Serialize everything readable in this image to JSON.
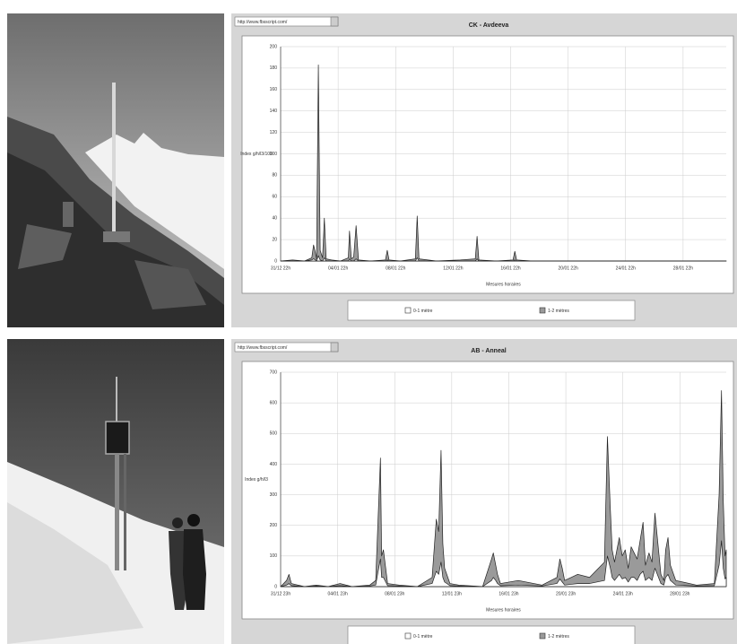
{
  "urls": [
    "http://www.fbsscript.com/",
    "http://www.fbsscript.com/"
  ],
  "chart_data": [
    {
      "type": "area",
      "title": "CK - Avdeeva",
      "y_label": "Index g/h/l3/100",
      "x_label": "Mesures horaires",
      "x": [
        0,
        20,
        40,
        52,
        55,
        58,
        60,
        63,
        66,
        70,
        73,
        76,
        85,
        100,
        113,
        115,
        118,
        122,
        126,
        130,
        150,
        175,
        178,
        181,
        200,
        225,
        228,
        231,
        260,
        300,
        325,
        328,
        331,
        360,
        388,
        391,
        394,
        420,
        500,
        600,
        700,
        744
      ],
      "series": [
        {
          "name": "1-2 mètres",
          "color": "#9a9a9a",
          "values": [
            0,
            1,
            0,
            3,
            15,
            8,
            2,
            183,
            10,
            3,
            40,
            2,
            1,
            0,
            3,
            28,
            2,
            4,
            33,
            1,
            0,
            1,
            10,
            1,
            0,
            2,
            42,
            2,
            0,
            1,
            2,
            23,
            1,
            0,
            1,
            9,
            1,
            0,
            0,
            0,
            0,
            0
          ]
        },
        {
          "name": "0-1 mètre",
          "color": "#ffffff",
          "values": [
            0,
            0,
            0,
            1,
            2,
            1,
            0,
            5,
            1,
            0,
            3,
            0,
            0,
            0,
            0,
            2,
            0,
            0,
            2,
            0,
            0,
            0,
            1,
            0,
            0,
            0,
            3,
            0,
            0,
            0,
            0,
            2,
            0,
            0,
            0,
            1,
            0,
            0,
            0,
            0,
            0,
            0
          ]
        }
      ],
      "xlim": [
        0,
        744
      ],
      "xticks": [
        {
          "value": 0,
          "label": "31/12 22h"
        },
        {
          "value": 96,
          "label": "04/01 22h"
        },
        {
          "value": 192,
          "label": "08/01 22h"
        },
        {
          "value": 288,
          "label": "12/01 22h"
        },
        {
          "value": 384,
          "label": "16/01 22h"
        },
        {
          "value": 480,
          "label": "20/01 22h"
        },
        {
          "value": 576,
          "label": "24/01 22h"
        },
        {
          "value": 672,
          "label": "28/01 22h"
        }
      ],
      "ylim": [
        0,
        200
      ],
      "yticks": [
        0,
        20,
        40,
        60,
        80,
        100,
        120,
        140,
        160,
        180,
        200
      ],
      "grid": true
    },
    {
      "type": "area",
      "title": "AB - Anneal",
      "y_label": "Index g/h/l3",
      "x_label": "Mesures horaires",
      "x": [
        0,
        10,
        14,
        18,
        40,
        60,
        80,
        100,
        120,
        150,
        160,
        165,
        168,
        170,
        173,
        180,
        200,
        230,
        255,
        262,
        266,
        270,
        273,
        276,
        285,
        300,
        340,
        355,
        358,
        362,
        365,
        370,
        400,
        440,
        465,
        470,
        474,
        478,
        500,
        520,
        545,
        550,
        555,
        558,
        562,
        570,
        575,
        580,
        585,
        590,
        595,
        600,
        605,
        610,
        614,
        620,
        625,
        630,
        640,
        645,
        648,
        652,
        656,
        665,
        700,
        730,
        738,
        742,
        745,
        748,
        750
      ],
      "series": [
        {
          "name": "1-2 mètres",
          "color": "#9a9a9a",
          "values": [
            0,
            20,
            40,
            10,
            0,
            5,
            0,
            10,
            0,
            5,
            20,
            270,
            420,
            100,
            120,
            10,
            5,
            0,
            30,
            220,
            180,
            445,
            140,
            60,
            10,
            5,
            0,
            90,
            110,
            70,
            40,
            10,
            20,
            5,
            30,
            90,
            60,
            20,
            40,
            30,
            80,
            490,
            250,
            120,
            80,
            160,
            100,
            120,
            60,
            130,
            110,
            90,
            150,
            210,
            70,
            110,
            80,
            240,
            40,
            20,
            120,
            160,
            70,
            20,
            5,
            10,
            300,
            640,
            280,
            100,
            120
          ]
        },
        {
          "name": "0-1 mètre",
          "color": "#ffffff",
          "values": [
            0,
            5,
            10,
            3,
            0,
            2,
            0,
            3,
            0,
            2,
            5,
            60,
            90,
            30,
            30,
            3,
            2,
            0,
            10,
            50,
            40,
            80,
            30,
            15,
            3,
            2,
            0,
            20,
            30,
            20,
            10,
            3,
            5,
            2,
            10,
            25,
            15,
            5,
            10,
            10,
            20,
            100,
            60,
            30,
            20,
            40,
            25,
            30,
            15,
            30,
            30,
            20,
            40,
            50,
            20,
            30,
            20,
            60,
            10,
            5,
            30,
            40,
            20,
            5,
            2,
            3,
            70,
            150,
            60,
            25,
            30
          ]
        }
      ],
      "xlim": [
        0,
        750
      ],
      "xticks": [
        {
          "value": 0,
          "label": "31/12 23h"
        },
        {
          "value": 96,
          "label": "04/01 23h"
        },
        {
          "value": 192,
          "label": "08/01 23h"
        },
        {
          "value": 288,
          "label": "12/01 23h"
        },
        {
          "value": 384,
          "label": "16/01 23h"
        },
        {
          "value": 480,
          "label": "20/01 23h"
        },
        {
          "value": 576,
          "label": "24/01 23h"
        },
        {
          "value": 672,
          "label": "28/01 23h"
        }
      ],
      "ylim": [
        0,
        700
      ],
      "yticks": [
        0,
        100,
        200,
        300,
        400,
        500,
        600,
        700
      ],
      "grid": true
    }
  ]
}
